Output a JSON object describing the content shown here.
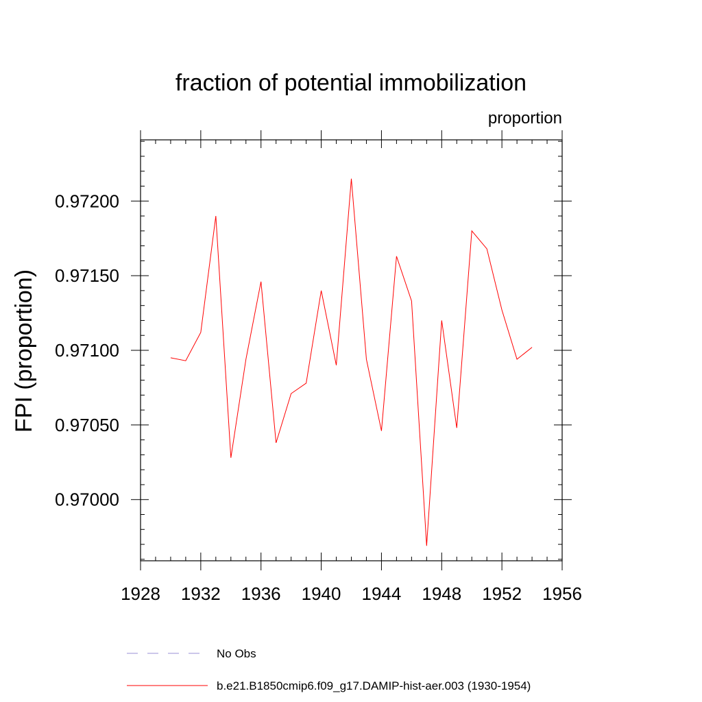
{
  "chart_data": {
    "type": "line",
    "title": "fraction of potential immobilization",
    "units_label": "proportion",
    "xlabel": "",
    "ylabel": "FPI  (proportion)",
    "xlim": [
      1928,
      1956
    ],
    "ylim": [
      0.96959,
      0.97241
    ],
    "x_ticks": [
      1928,
      1932,
      1936,
      1940,
      1944,
      1948,
      1952,
      1956
    ],
    "y_ticks": [
      0.97,
      0.9705,
      0.971,
      0.9715,
      0.972
    ],
    "x_tick_labels": [
      "1928",
      "1932",
      "1936",
      "1940",
      "1944",
      "1948",
      "1952",
      "1956"
    ],
    "y_tick_labels": [
      "0.97000",
      "0.97050",
      "0.97100",
      "0.97150",
      "0.97200"
    ],
    "grid": false,
    "legend_position": "bottom",
    "series": [
      {
        "name": "b.e21.B1850cmip6.f09_g17.DAMIP-hist-aer.003 (1930-1954)",
        "color": "#ff0000",
        "style": "solid",
        "x": [
          1930,
          1931,
          1932,
          1933,
          1934,
          1935,
          1936,
          1937,
          1938,
          1939,
          1940,
          1941,
          1942,
          1943,
          1944,
          1945,
          1946,
          1947,
          1948,
          1949,
          1950,
          1951,
          1952,
          1953,
          1954
        ],
        "values": [
          0.97095,
          0.97093,
          0.97112,
          0.9719,
          0.97028,
          0.97094,
          0.97146,
          0.97038,
          0.97071,
          0.97078,
          0.9714,
          0.9709,
          0.97215,
          0.97094,
          0.97046,
          0.97163,
          0.97133,
          0.96969,
          0.9712,
          0.97048,
          0.9718,
          0.97168,
          0.97127,
          0.97094,
          0.97102
        ]
      }
    ],
    "legend": [
      {
        "label": "No Obs",
        "color": "#9a8fd6",
        "style": "dashed"
      },
      {
        "label": "b.e21.B1850cmip6.f09_g17.DAMIP-hist-aer.003 (1930-1954)",
        "color": "#ff0000",
        "style": "solid"
      }
    ]
  }
}
